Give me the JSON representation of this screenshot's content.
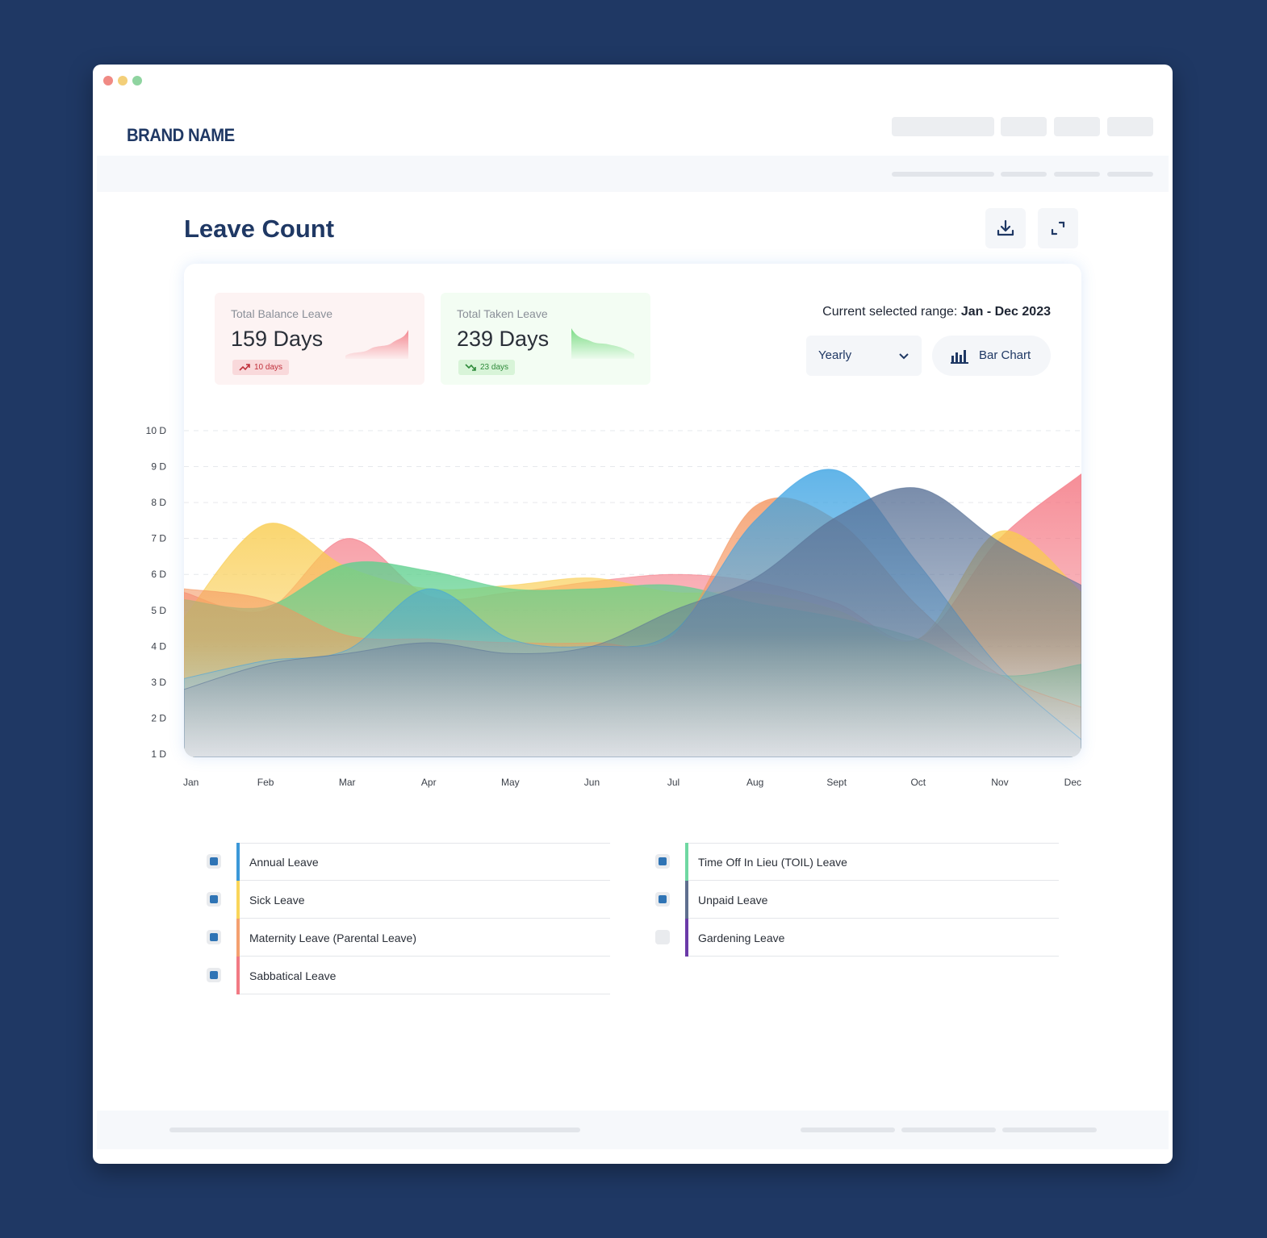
{
  "brand": "BRAND NAME",
  "page_title": "Leave Count",
  "stats": [
    {
      "label": "Total Balance Leave",
      "value": "159 Days",
      "delta": "10 days",
      "trend": "up"
    },
    {
      "label": "Total Taken Leave",
      "value": "239 Days",
      "delta": "23 days",
      "trend": "down"
    }
  ],
  "range": {
    "prefix": "Current selected range:",
    "value": "Jan - Dec 2023"
  },
  "period_select": {
    "value": "Yearly"
  },
  "chart_type_button": {
    "label": "Bar Chart"
  },
  "colors": {
    "accent": "#1f3864",
    "checkbox": "#2f74b5"
  },
  "chart_data": {
    "type": "area",
    "categories": [
      "Jan",
      "Feb",
      "Mar",
      "Apr",
      "May",
      "Jun",
      "Jul",
      "Aug",
      "Sept",
      "Oct",
      "Nov",
      "Dec"
    ],
    "y_ticks": [
      "1 D",
      "2 D",
      "3 D",
      "4 D",
      "5 D",
      "6 D",
      "7 D",
      "8 D",
      "9 D",
      "10 D"
    ],
    "ylim": [
      1,
      10
    ],
    "grid": true,
    "series": [
      {
        "name": "Sabbatical Leave",
        "color": "#f4737f",
        "values": [
          5.5,
          5.0,
          7.0,
          5.4,
          5.5,
          5.8,
          6.0,
          5.8,
          5.2,
          4.2,
          7.0,
          8.8
        ]
      },
      {
        "name": "Sick Leave",
        "color": "#f9cc4e",
        "values": [
          4.8,
          7.4,
          6.2,
          5.6,
          5.7,
          5.9,
          5.5,
          5.5,
          5.0,
          4.2,
          7.2,
          5.5
        ]
      },
      {
        "name": "Time Off In Lieu (TOIL) Leave",
        "color": "#5fd08e",
        "values": [
          5.3,
          5.1,
          6.3,
          6.1,
          5.6,
          5.6,
          5.7,
          5.2,
          4.8,
          4.2,
          3.2,
          3.5
        ]
      },
      {
        "name": "Maternity Leave (Parental Leave)",
        "color": "#f4955f",
        "values": [
          5.6,
          5.3,
          4.3,
          4.2,
          4.1,
          4.1,
          4.3,
          7.9,
          7.5,
          5.1,
          3.2,
          2.3
        ]
      },
      {
        "name": "Annual Leave",
        "color": "#3ca3e3",
        "values": [
          3.1,
          3.6,
          3.9,
          5.6,
          4.2,
          4.0,
          4.4,
          7.5,
          8.9,
          6.3,
          3.4,
          1.4
        ]
      },
      {
        "name": "Unpaid Leave",
        "color": "#5a7297",
        "values": [
          2.8,
          3.5,
          3.8,
          4.1,
          3.8,
          4.0,
          5.0,
          5.9,
          7.6,
          8.4,
          6.9,
          5.7
        ]
      }
    ]
  },
  "legend": {
    "left": [
      {
        "label": "Annual Leave",
        "color": "#3c98d8",
        "checked": true
      },
      {
        "label": "Sick Leave",
        "color": "#f9d55a",
        "checked": true
      },
      {
        "label": "Maternity Leave (Parental Leave)",
        "color": "#f4a070",
        "checked": true
      },
      {
        "label": "Sabbatical Leave",
        "color": "#f27a84",
        "checked": true
      }
    ],
    "right": [
      {
        "label": "Time Off In Lieu (TOIL) Leave",
        "color": "#6fd8a2",
        "checked": true
      },
      {
        "label": "Unpaid Leave",
        "color": "#5f6f8f",
        "checked": true
      },
      {
        "label": "Gardening Leave",
        "color": "#6b3aa8",
        "checked": false
      }
    ]
  }
}
